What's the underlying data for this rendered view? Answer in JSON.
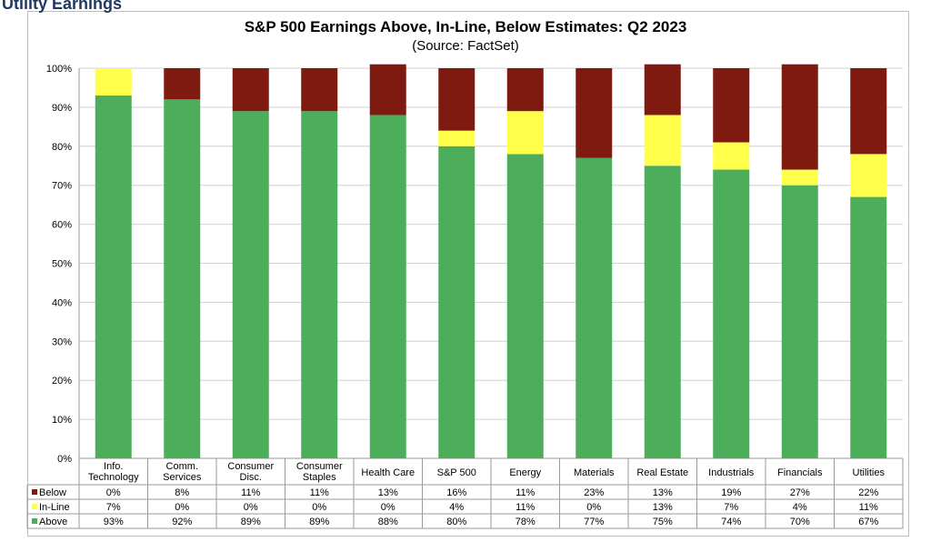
{
  "page": {
    "heading": "Utility Earnings"
  },
  "chart_data": {
    "type": "bar",
    "stacked": true,
    "title": "S&P 500 Earnings Above, In-Line, Below Estimates: Q2 2023",
    "subtitle": "(Source: FactSet)",
    "categories": [
      [
        "Info.",
        "Technology"
      ],
      [
        "Comm.",
        "Services"
      ],
      [
        "Consumer",
        "Disc."
      ],
      [
        "Consumer",
        "Staples"
      ],
      [
        "Health Care"
      ],
      [
        "S&P 500"
      ],
      [
        "Energy"
      ],
      [
        "Materials"
      ],
      [
        "Real Estate"
      ],
      [
        "Industrials"
      ],
      [
        "Financials"
      ],
      [
        "Utilities"
      ]
    ],
    "series": [
      {
        "name": "Above",
        "color": "#4cae5a",
        "values": [
          93,
          92,
          89,
          89,
          88,
          80,
          78,
          77,
          75,
          74,
          70,
          67
        ]
      },
      {
        "name": "In-Line",
        "color": "#ffff4c",
        "values": [
          7,
          0,
          0,
          0,
          0,
          4,
          11,
          0,
          13,
          7,
          4,
          11
        ]
      },
      {
        "name": "Below",
        "color": "#7f1a10",
        "values": [
          0,
          8,
          11,
          11,
          13,
          16,
          11,
          23,
          13,
          19,
          27,
          22
        ]
      }
    ],
    "table_rows": [
      "Below",
      "In-Line",
      "Above"
    ],
    "ylim": [
      0,
      100
    ],
    "yticks": [
      0,
      10,
      20,
      30,
      40,
      50,
      60,
      70,
      80,
      90,
      100
    ],
    "ytick_suffix": "%",
    "grid": true,
    "legend": "data-table-below"
  }
}
